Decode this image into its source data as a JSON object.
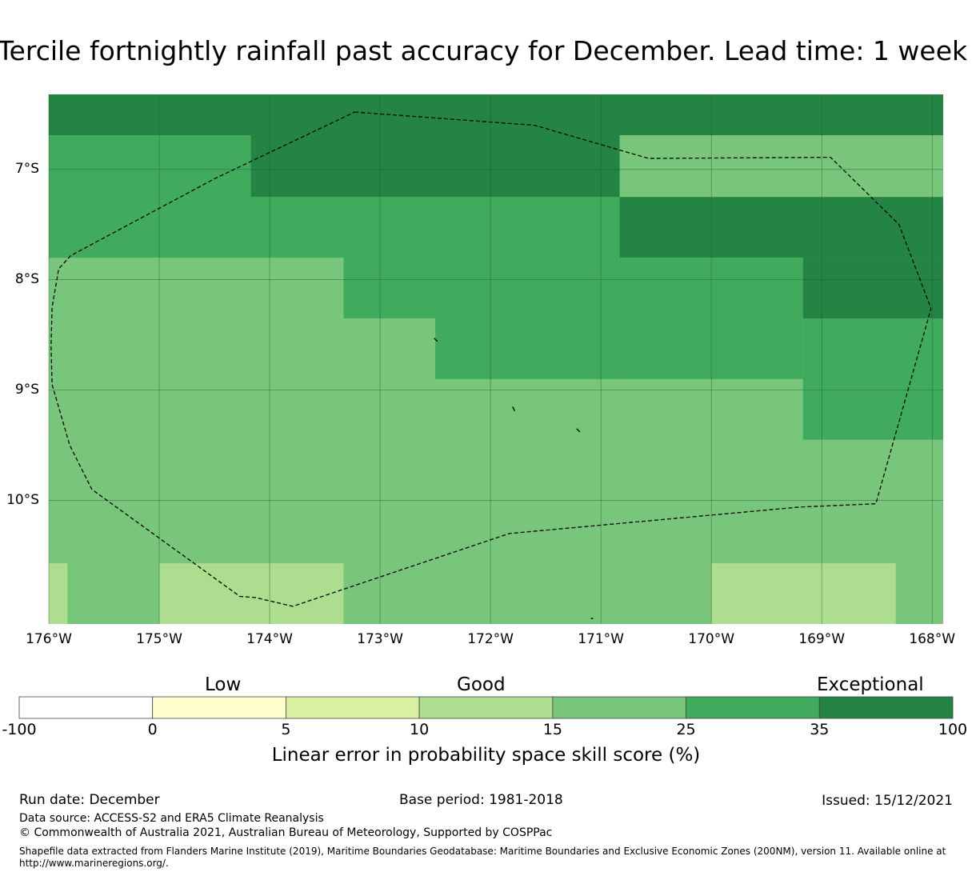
{
  "title": "Tercile fortnightly rainfall past accuracy for December. Lead time: 1 week",
  "map": {
    "lon_range": [
      -176,
      -167.9
    ],
    "lat_range": [
      -11.12,
      -6.32
    ],
    "lon_ticks": [
      {
        "value": -176,
        "label": "176°W"
      },
      {
        "value": -175,
        "label": "175°W"
      },
      {
        "value": -174,
        "label": "174°W"
      },
      {
        "value": -173,
        "label": "173°W"
      },
      {
        "value": -172,
        "label": "172°W"
      },
      {
        "value": -171,
        "label": "171°W"
      },
      {
        "value": -170,
        "label": "170°W"
      },
      {
        "value": -169,
        "label": "169°W"
      },
      {
        "value": -168,
        "label": "168°W"
      }
    ],
    "lat_ticks": [
      {
        "value": -7,
        "label": "7°S"
      },
      {
        "value": -8,
        "label": "8°S"
      },
      {
        "value": -9,
        "label": "9°S"
      },
      {
        "value": -10,
        "label": "10°S"
      }
    ],
    "skill_cells": [
      {
        "lon": [
          -176,
          -167.9
        ],
        "lat": [
          -11.12,
          -6.32
        ],
        "class": 4
      },
      {
        "lon": [
          -176,
          -167.9
        ],
        "lat": [
          -6.69,
          -6.32
        ],
        "class": 6
      },
      {
        "lon": [
          -176,
          -174.17
        ],
        "lat": [
          -7.8,
          -6.69
        ],
        "class": 5
      },
      {
        "lon": [
          -174.17,
          -170.83
        ],
        "lat": [
          -7.25,
          -6.69
        ],
        "class": 6
      },
      {
        "lon": [
          -174.17,
          -173.33
        ],
        "lat": [
          -7.8,
          -7.25
        ],
        "class": 5
      },
      {
        "lon": [
          -173.33,
          -170.83
        ],
        "lat": [
          -8.35,
          -7.25
        ],
        "class": 5
      },
      {
        "lon": [
          -170.83,
          -167.9
        ],
        "lat": [
          -7.8,
          -7.25
        ],
        "class": 6
      },
      {
        "lon": [
          -170.83,
          -169.17
        ],
        "lat": [
          -8.9,
          -7.8
        ],
        "class": 5
      },
      {
        "lon": [
          -169.17,
          -167.9
        ],
        "lat": [
          -8.35,
          -7.8
        ],
        "class": 6
      },
      {
        "lon": [
          -172.5,
          -170.83
        ],
        "lat": [
          -8.9,
          -8.35
        ],
        "class": 5
      },
      {
        "lon": [
          -169.17,
          -167.9
        ],
        "lat": [
          -9.45,
          -8.35
        ],
        "class": 5
      },
      {
        "lon": [
          -176,
          -175.83
        ],
        "lat": [
          -11.12,
          -10.57
        ],
        "class": 3
      },
      {
        "lon": [
          -175,
          -173.33
        ],
        "lat": [
          -11.12,
          -10.57
        ],
        "class": 3
      },
      {
        "lon": [
          -170,
          -168.33
        ],
        "lat": [
          -11.12,
          -10.57
        ],
        "class": 3
      }
    ],
    "eez_boundary": [
      [
        -173.23,
        -6.48
      ],
      [
        -171.6,
        -6.6
      ],
      [
        -170.57,
        -6.9
      ],
      [
        -168.92,
        -6.89
      ],
      [
        -168.3,
        -7.5
      ],
      [
        -168.01,
        -8.26
      ],
      [
        -168.51,
        -10.03
      ],
      [
        -169.2,
        -10.06
      ],
      [
        -171.83,
        -10.3
      ],
      [
        -173.79,
        -10.96
      ],
      [
        -174.13,
        -10.88
      ],
      [
        -174.27,
        -10.87
      ],
      [
        -175.61,
        -9.9
      ],
      [
        -175.81,
        -9.5
      ],
      [
        -175.97,
        -8.95
      ],
      [
        -175.98,
        -8.6
      ],
      [
        -175.97,
        -8.25
      ],
      [
        -175.91,
        -7.9
      ],
      [
        -175.8,
        -7.78
      ],
      [
        -174.49,
        -7.08
      ],
      [
        -173.23,
        -6.48
      ]
    ],
    "islands": [
      [
        [
          -172.51,
          -8.53
        ],
        [
          -172.48,
          -8.56
        ]
      ],
      [
        [
          -171.8,
          -9.15
        ],
        [
          -171.78,
          -9.19
        ]
      ],
      [
        [
          -171.22,
          -9.35
        ],
        [
          -171.19,
          -9.38
        ]
      ],
      [
        [
          -171.09,
          -11.07
        ],
        [
          -171.07,
          -11.07
        ]
      ]
    ]
  },
  "colorbar": {
    "category_labels": {
      "low": "Low",
      "good": "Good",
      "exceptional": "Exceptional"
    },
    "bins": [
      {
        "from": "-100",
        "to": "0",
        "color": "#ffffff"
      },
      {
        "from": "0",
        "to": "5",
        "color": "#ffffcc"
      },
      {
        "from": "5",
        "to": "10",
        "color": "#d9f0a3"
      },
      {
        "from": "10",
        "to": "15",
        "color": "#addd8e"
      },
      {
        "from": "15",
        "to": "25",
        "color": "#78c679"
      },
      {
        "from": "25",
        "to": "35",
        "color": "#41ab5d"
      },
      {
        "from": "35",
        "to": "100",
        "color": "#238443"
      }
    ],
    "tick_labels": [
      "-100",
      "0",
      "5",
      "10",
      "15",
      "25",
      "35",
      "100"
    ],
    "title": "Linear error in probability space skill score (%)"
  },
  "footer": {
    "run_date": "Run date: December",
    "base_period": "Base period: 1981-2018",
    "issued": "Issued: 15/12/2021",
    "data_source": "Data source: ACCESS-S2 and ERA5 Climate Reanalysis",
    "copyright": "© Commonwealth of Australia 2021, Australian Bureau of Meteorology, Supported by COSPPac",
    "shapefile_note": "Shapefile data extracted from Flanders Marine Institute (2019), Maritime Boundaries Geodatabase: Maritime Boundaries and Exclusive Economic Zones (200NM), version 11. Available online at http://www.marineregions.org/."
  }
}
